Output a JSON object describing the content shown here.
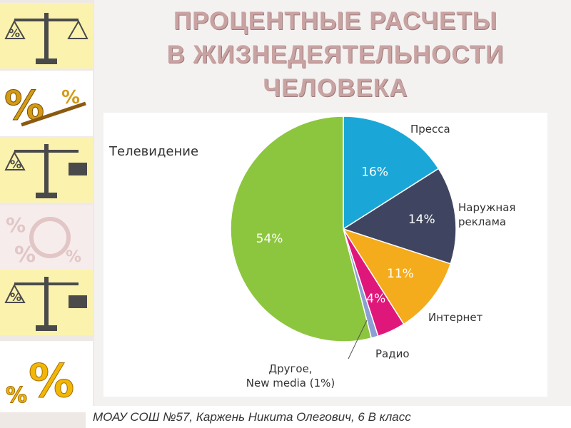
{
  "title": {
    "line1": "ПРОЦЕНТНЫЕ РАСЧЕТЫ",
    "line2": "В ЖИЗНЕДЕЯТЕЛЬНОСТИ",
    "line3": "ЧЕЛОВЕКА"
  },
  "footer": {
    "text": "МОАУ СОШ №57, Каржень Никита Олегович, 6 В класс"
  },
  "sidebar": {
    "icons": [
      "scales-icon",
      "percent-seesaw-icon",
      "scales-icon",
      "percent-pattern-icon",
      "scales-icon",
      "percent-icon"
    ]
  },
  "chart_data": {
    "type": "pie",
    "slices": [
      {
        "label": "Пресса",
        "value": 16,
        "value_label": "16%",
        "color": "#1aa7d8"
      },
      {
        "label": "Наружная реклама",
        "label_line1": "Наружная",
        "label_line2": "реклама",
        "value": 14,
        "value_label": "14%",
        "color": "#3f4560"
      },
      {
        "label": "Интернет",
        "value": 11,
        "value_label": "11%",
        "color": "#f4ac1c"
      },
      {
        "label": "Радио",
        "value": 4,
        "value_label": "4%",
        "color": "#e0177a"
      },
      {
        "label": "Другое, New media (1%)",
        "label_line1": "Другое,",
        "label_line2": "New media (1%)",
        "value": 1,
        "value_label": "",
        "color": "#8c9fd4"
      },
      {
        "label": "Телевидение",
        "value": 54,
        "value_label": "54%",
        "color": "#8cc63e"
      }
    ]
  }
}
